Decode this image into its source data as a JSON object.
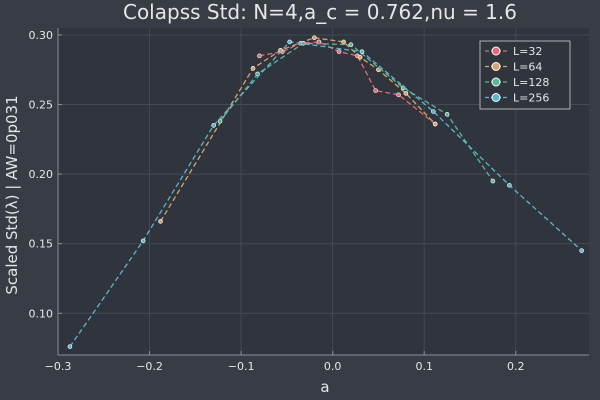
{
  "colors": {
    "background": "#383c45",
    "plot_area": "#30343c",
    "text": "#e6e6e6",
    "grid": "#454952",
    "axis": "#8a8f98"
  },
  "chart_data": {
    "type": "line",
    "title": "Colapss Std: N=4,a_c = 0.762,nu = 1.6",
    "xlabel": "a",
    "ylabel": "Scaled Std(λ) | AW=0p031",
    "xlim": [
      -0.3,
      0.28
    ],
    "ylim": [
      0.07,
      0.305
    ],
    "xticks": [
      -0.3,
      -0.2,
      -0.1,
      0.0,
      0.1,
      0.2
    ],
    "xtick_labels": [
      "−0.3",
      "−0.2",
      "−0.1",
      "0.0",
      "0.1",
      "0.2"
    ],
    "yticks": [
      0.1,
      0.15,
      0.2,
      0.25,
      0.3
    ],
    "ytick_labels": [
      "0.10",
      "0.15",
      "0.20",
      "0.25",
      "0.30"
    ],
    "grid": true,
    "legend_position": "top-right",
    "series": [
      {
        "name": "L=32",
        "color": "#e26a7e",
        "x": [
          -0.08,
          -0.055,
          -0.035,
          -0.015,
          0.007,
          0.027,
          0.047,
          0.072,
          0.112
        ],
        "y": [
          0.285,
          0.288,
          0.294,
          0.295,
          0.288,
          0.285,
          0.26,
          0.257,
          0.236
        ]
      },
      {
        "name": "L=64",
        "color": "#d6a46b",
        "x": [
          -0.188,
          -0.087,
          -0.057,
          -0.02,
          0.012,
          0.03,
          0.05,
          0.08,
          0.112
        ],
        "y": [
          0.166,
          0.276,
          0.289,
          0.298,
          0.295,
          0.284,
          0.275,
          0.258,
          0.236
        ]
      },
      {
        "name": "L=128",
        "color": "#58b79a",
        "x": [
          -0.123,
          -0.082,
          -0.032,
          0.02,
          0.077,
          0.125,
          0.175
        ],
        "y": [
          0.238,
          0.272,
          0.294,
          0.293,
          0.262,
          0.243,
          0.195
        ]
      },
      {
        "name": "L=256",
        "color": "#5ab7cb",
        "x": [
          -0.287,
          -0.207,
          -0.13,
          -0.047,
          0.032,
          0.11,
          0.193,
          0.272
        ],
        "y": [
          0.076,
          0.152,
          0.235,
          0.295,
          0.288,
          0.245,
          0.192,
          0.145
        ]
      }
    ]
  }
}
